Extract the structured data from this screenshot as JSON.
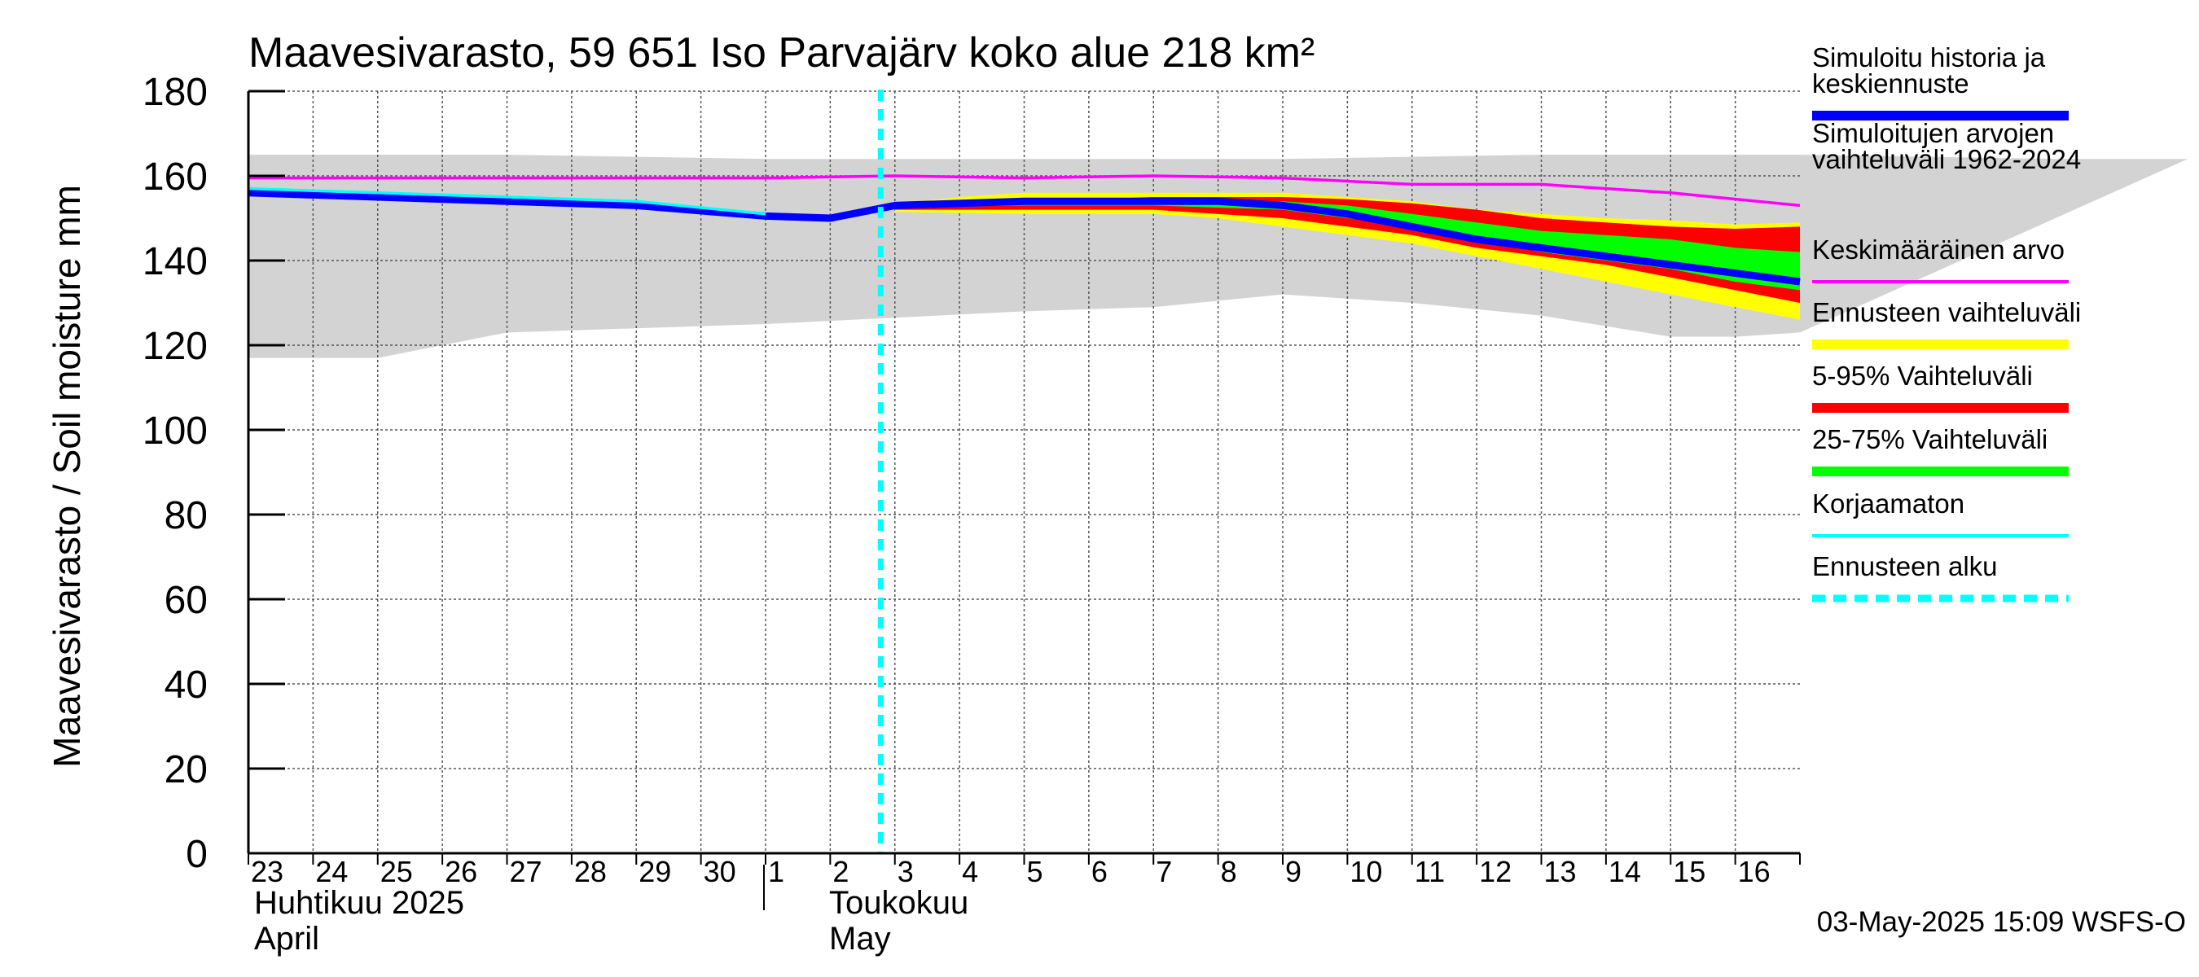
{
  "chart_data": {
    "type": "area",
    "title": "Maavesivarasto, 59 651 Iso Parvajärv koko alue 218 km²",
    "ylabel": "Maavesivarasto / Soil moisture   mm",
    "ylim": [
      0,
      180
    ],
    "yticks": [
      0,
      20,
      40,
      60,
      80,
      100,
      120,
      140,
      160,
      180
    ],
    "grid": true,
    "x_day_labels": [
      "23",
      "24",
      "25",
      "26",
      "27",
      "28",
      "29",
      "30",
      "1",
      "2",
      "3",
      "4",
      "5",
      "6",
      "7",
      "8",
      "9",
      "10",
      "11",
      "12",
      "13",
      "14",
      "15",
      "16"
    ],
    "month_labels": {
      "april_fi": "Huhtikuu  2025",
      "april_en": "April",
      "may_fi": "Toukokuu",
      "may_en": "May"
    },
    "forecast_start_day_index": 10,
    "timestamp": "03-May-2025 15:09 WSFS-O",
    "legend": [
      {
        "key": "history",
        "label": "Simuloitu historia ja keskiennuste",
        "color": "#0000ff"
      },
      {
        "key": "range_hist",
        "label": "Simuloitujen arvojen vaihteluväli 1962-2024",
        "color": "#d3d3d3"
      },
      {
        "key": "mean",
        "label": "Keskimääräinen arvo",
        "color": "#ff00ff"
      },
      {
        "key": "fc_range",
        "label": "Ennusteen vaihteluväli",
        "color": "#ffff00"
      },
      {
        "key": "p5_95",
        "label": "5-95% Vaihteluväli",
        "color": "#ff0000"
      },
      {
        "key": "p25_75",
        "label": "25-75% Vaihteluväli",
        "color": "#00ff00"
      },
      {
        "key": "uncorrected",
        "label": "Korjaamaton",
        "color": "#00ffff"
      },
      {
        "key": "fc_start",
        "label": "Ennusteen alku",
        "color": "#00ffff"
      }
    ],
    "series": {
      "hist_range_upper": {
        "x": [
          0,
          4,
          8,
          12,
          16,
          20,
          24,
          28,
          30
        ],
        "y": [
          165,
          165,
          164,
          164,
          164,
          165,
          165,
          164,
          164
        ]
      },
      "hist_range_lower": {
        "x": [
          0,
          2,
          4,
          8,
          12,
          14,
          16,
          18,
          20,
          22,
          23,
          24
        ],
        "y": [
          117,
          117,
          123,
          125,
          128,
          129,
          132,
          130,
          127,
          122,
          122,
          123
        ]
      },
      "mean": {
        "x": [
          0,
          4,
          8,
          10,
          12,
          14,
          16,
          18,
          20,
          22,
          24
        ],
        "y": [
          159.5,
          159.5,
          159.5,
          160,
          159.5,
          160,
          159.5,
          158,
          158,
          156,
          153
        ]
      },
      "median": {
        "x": [
          0,
          2,
          4,
          6,
          8,
          9,
          10,
          12,
          14,
          15,
          16,
          17,
          18,
          19,
          20,
          21,
          22,
          23,
          24
        ],
        "y": [
          156,
          155,
          154,
          153,
          150.5,
          150,
          153,
          154,
          154,
          154,
          153,
          151,
          148,
          145,
          143,
          141,
          139,
          137,
          135
        ]
      },
      "uncorrected": {
        "x": [
          0,
          2,
          4,
          6,
          8
        ],
        "y": [
          157,
          156,
          155,
          154,
          151
        ]
      },
      "fc_upper": {
        "x": [
          10,
          11,
          12,
          14,
          16,
          17,
          18,
          19,
          20,
          21,
          22,
          23,
          24
        ],
        "y": [
          153.5,
          155,
          156,
          156,
          156,
          155,
          154,
          152,
          151,
          150,
          149.5,
          148.5,
          149
        ]
      },
      "fc_lower": {
        "x": [
          10,
          12,
          14,
          15,
          16,
          17,
          18,
          19,
          20,
          21,
          22,
          23,
          24
        ],
        "y": [
          151.5,
          151,
          151,
          150,
          148,
          146,
          144,
          141,
          138,
          135,
          132,
          129,
          126
        ]
      },
      "p95": {
        "x": [
          10,
          12,
          14,
          16,
          17,
          18,
          19,
          20,
          21,
          22,
          23,
          24
        ],
        "y": [
          153,
          154,
          155,
          155,
          154.5,
          153.5,
          152,
          150,
          149,
          148,
          147.5,
          148
        ]
      },
      "p5": {
        "x": [
          10,
          12,
          14,
          16,
          17,
          18,
          19,
          20,
          21,
          22,
          23,
          24
        ],
        "y": [
          152,
          152,
          152,
          150,
          148,
          146,
          143,
          141,
          139,
          136,
          133,
          130
        ]
      },
      "p75": {
        "x": [
          10,
          12,
          14,
          16,
          17,
          18,
          19,
          20,
          21,
          22,
          23,
          24
        ],
        "y": [
          153,
          154,
          154,
          154,
          153,
          151,
          149,
          147,
          146,
          145,
          143,
          142
        ]
      },
      "p25": {
        "x": [
          10,
          12,
          14,
          16,
          17,
          18,
          19,
          20,
          21,
          22,
          23,
          24
        ],
        "y": [
          152.5,
          153,
          153,
          152,
          150,
          148,
          145,
          142,
          140,
          138,
          135,
          133
        ]
      }
    }
  }
}
